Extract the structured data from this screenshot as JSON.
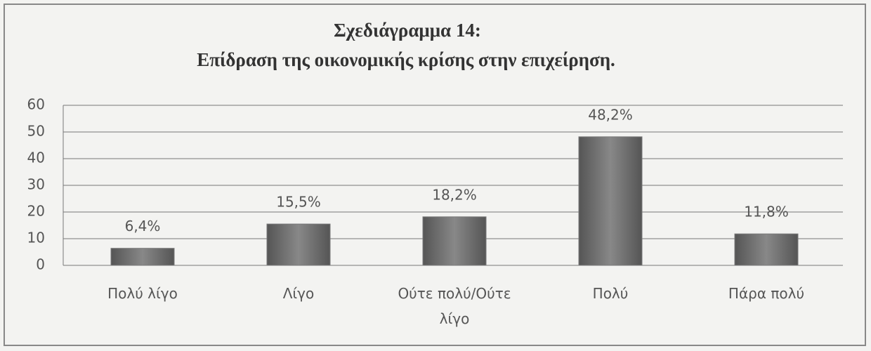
{
  "chart_data": {
    "type": "bar",
    "title": "Σχεδιάγραμμα 14:",
    "subtitle": "Επίδραση  της οικονομικής κρίσης στην επιχείρηση.",
    "categories": [
      "Πολύ λίγο",
      "Λίγο",
      "Ούτε πολύ/Ούτε λίγο",
      "Πολύ",
      "Πάρα πολύ"
    ],
    "values": [
      6.4,
      15.5,
      18.2,
      48.2,
      11.8
    ],
    "value_labels": [
      "6,4%",
      "15,5%",
      "18,2%",
      "48,2%",
      "11,8%"
    ],
    "color": "#7a7a7a",
    "ylim": [
      0,
      60
    ],
    "yticks": [
      0,
      10,
      20,
      30,
      40,
      50,
      60
    ],
    "grid": true
  }
}
